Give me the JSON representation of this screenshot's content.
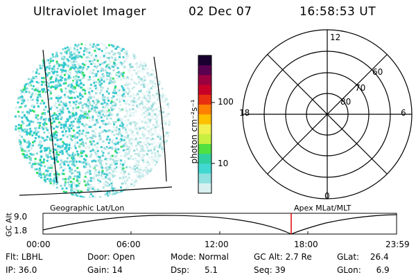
{
  "header": {
    "title": "Ultraviolet Imager",
    "date": "02 Dec 07",
    "time": "16:58:53 UT"
  },
  "colorbar": {
    "label": "photon cm⁻²s⁻¹",
    "ticks": [
      "100",
      "10"
    ],
    "colors": [
      "#1a0030",
      "#5a0050",
      "#9b0040",
      "#c80028",
      "#e83010",
      "#ff8000",
      "#ffc000",
      "#f0f050",
      "#c8f040",
      "#50e040",
      "#30d0a0",
      "#40d8d0",
      "#90e0e0",
      "#d8f0f0"
    ]
  },
  "polar_plot": {
    "mlt_labels": {
      "top": "12",
      "left": "18",
      "right": "6",
      "bottom": "0"
    },
    "lat_labels": [
      "60",
      "70",
      "80"
    ]
  },
  "timeline": {
    "y_axis_label": "GC Alt",
    "y_ticks": [
      "9.0",
      "1.8"
    ],
    "left_title": "Geographic Lat/Lon",
    "right_title": "Apex  MLat/MLT",
    "x_ticks": [
      "00:00",
      "06:00",
      "12:00",
      "18:00",
      "23:59"
    ],
    "marker_color": "#e00000"
  },
  "status": {
    "flt_label": "Flt:",
    "flt_value": "LBHL",
    "ip_label": "IP:",
    "ip_value": "36.0",
    "door_label": "Door:",
    "door_value": "Open",
    "gain_label": "Gain:",
    "gain_value": "14",
    "mode_label": "Mode:",
    "mode_value": "Normal",
    "dsp_label": "Dsp:",
    "dsp_value": "5.1",
    "gcalt_label": "GC Alt:",
    "gcalt_value": "2.7 Re",
    "seq_label": "Seq:",
    "seq_value": "39",
    "glat_label": "GLat:",
    "glat_value": "26.4",
    "glon_label": "GLon:",
    "glon_value": "6.9"
  }
}
